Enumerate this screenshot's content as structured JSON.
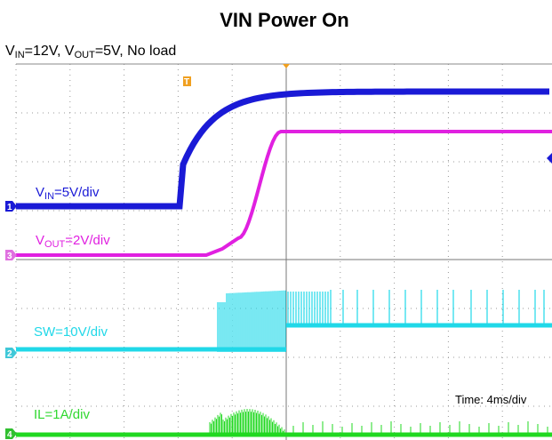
{
  "title": "VIN Power On",
  "subtitle": [
    "V",
    "IN",
    "=12V, V",
    "OUT",
    "=5V, No load"
  ],
  "channels": [
    {
      "label": [
        "V",
        "IN",
        "=5V/div"
      ],
      "marker": "1"
    },
    {
      "label": [
        "V",
        "OUT",
        "=2V/div"
      ],
      "marker": "3"
    },
    {
      "label": [
        "SW=10V/div"
      ],
      "marker": "2"
    },
    {
      "label": [
        "IL=1A/div"
      ],
      "marker": "4"
    }
  ],
  "trigger": "T",
  "timebase": "Time: 4ms/div"
}
